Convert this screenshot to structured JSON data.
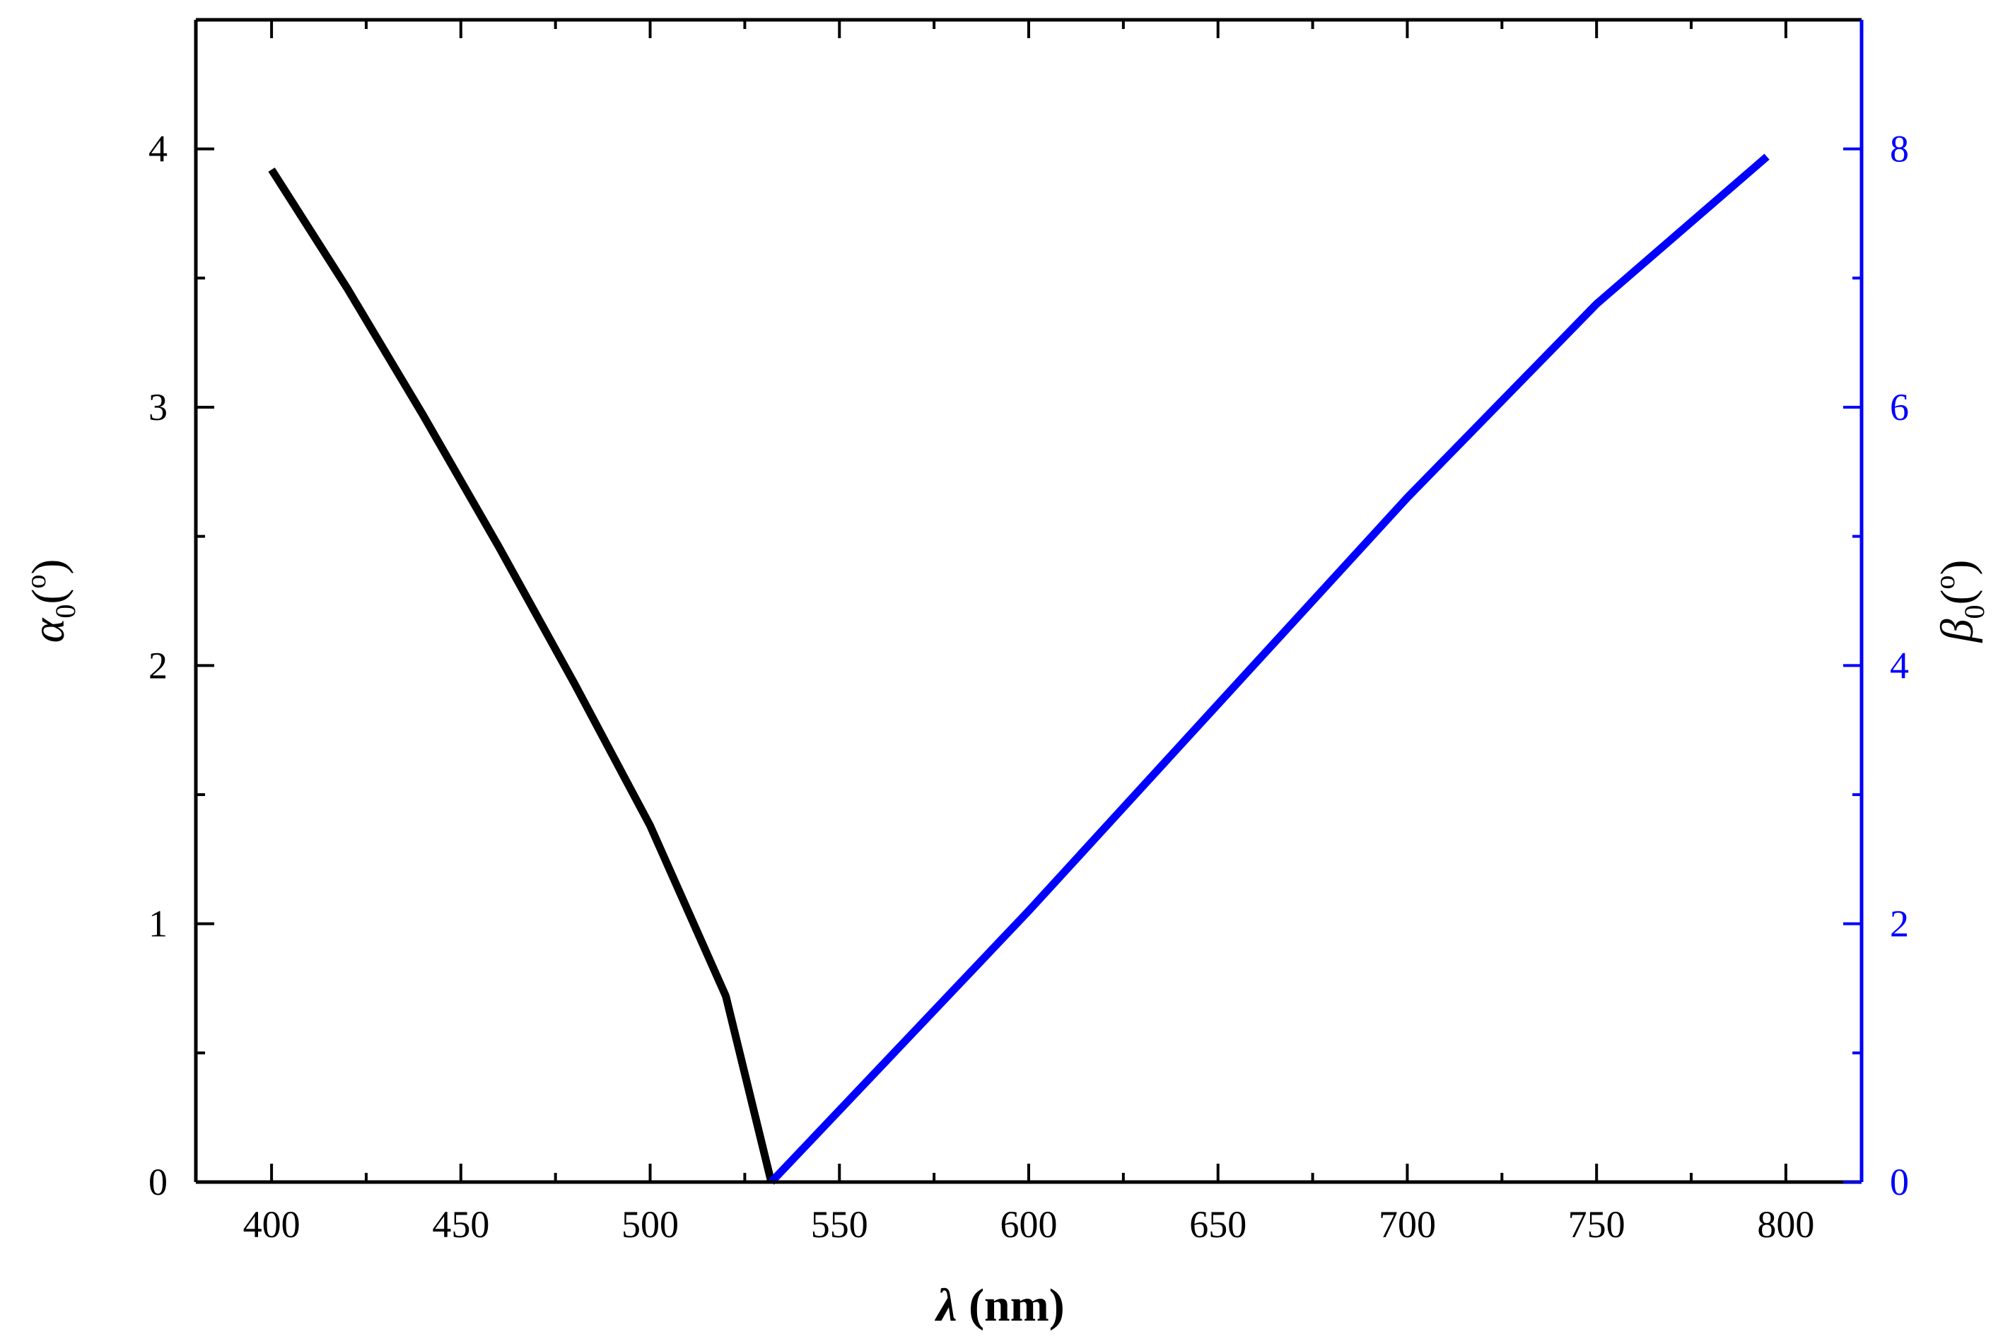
{
  "chart_data": {
    "type": "line",
    "xlabel_symbol": "λ",
    "xlabel_unit": " (nm)",
    "ylabel_left_symbol": "α",
    "ylabel_left_sub": "0",
    "ylabel_left_unit_open": "(",
    "ylabel_left_unit_sup": "o",
    "ylabel_left_unit_close": ")",
    "ylabel_right_symbol": "β",
    "ylabel_right_sub": "0",
    "ylabel_right_unit_open": "(",
    "ylabel_right_unit_sup": "o",
    "ylabel_right_unit_close": ")",
    "xlim": [
      380,
      820
    ],
    "ylim_left": [
      0,
      4.5
    ],
    "ylim_right": [
      0,
      9
    ],
    "xticks": [
      400,
      450,
      500,
      550,
      600,
      650,
      700,
      750,
      800
    ],
    "yticks_left": [
      0,
      1,
      2,
      3,
      4
    ],
    "yticks_right": [
      0,
      2,
      4,
      6,
      8
    ],
    "grid": false,
    "series": [
      {
        "axis": "left",
        "color": "#000000",
        "x": [
          400,
          420,
          440,
          460,
          480,
          500,
          520,
          532
        ],
        "y": [
          3.92,
          3.46,
          2.97,
          2.46,
          1.93,
          1.38,
          0.72,
          0.0
        ]
      },
      {
        "axis": "right",
        "color": "#0000ff",
        "x": [
          532,
          600,
          650,
          700,
          750,
          795
        ],
        "y": [
          0.0,
          2.1,
          3.7,
          5.3,
          6.8,
          7.94
        ]
      }
    ]
  },
  "colors": {
    "axis": "#000000",
    "right_axis": "#0000ff"
  }
}
